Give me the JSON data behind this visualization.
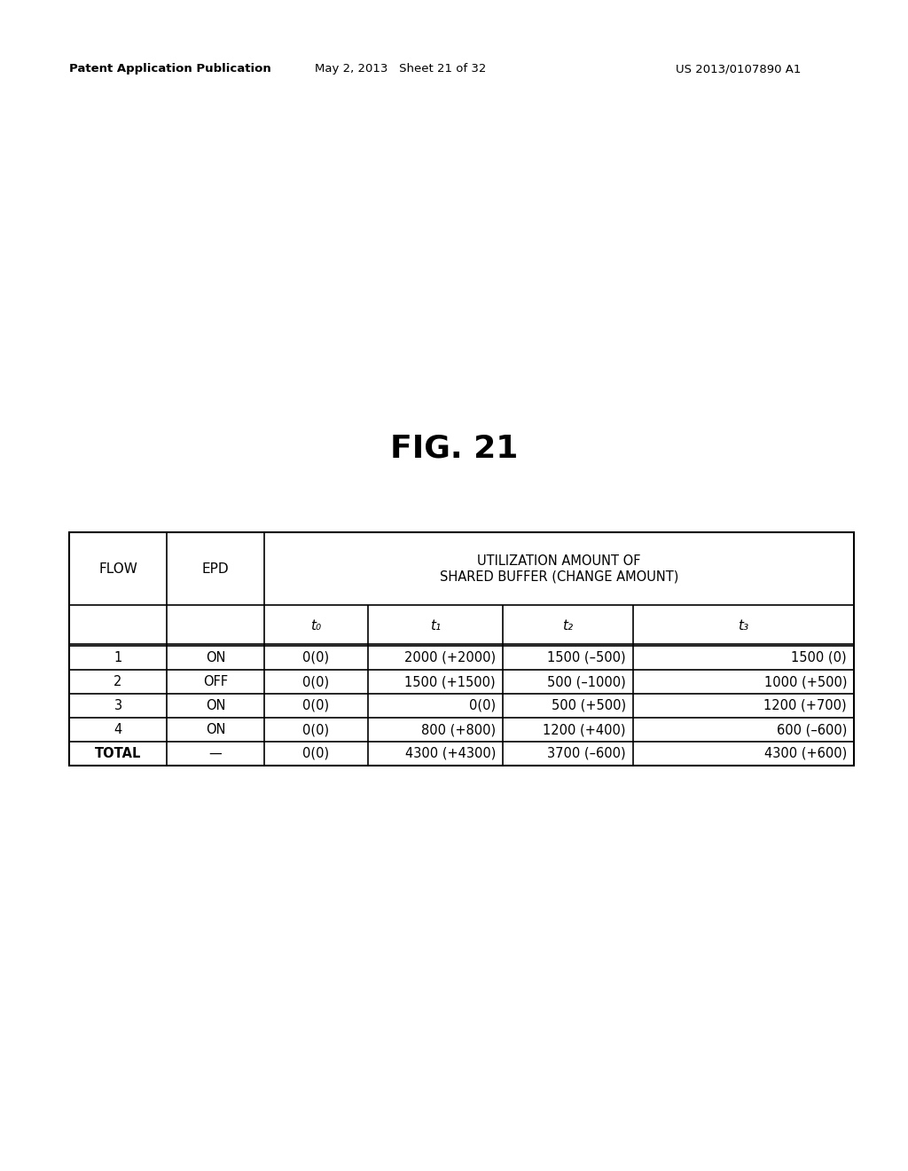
{
  "header_line1": "Patent Application Publication",
  "header_date": "May 2, 2013   Sheet 21 of 32",
  "header_patent": "US 2013/0107890 A1",
  "fig_label": "FIG. 21",
  "table": {
    "merged_header": "UTILIZATION AMOUNT OF\nSHARED BUFFER (CHANGE AMOUNT)",
    "rows": [
      [
        "1",
        "ON",
        "0(0)",
        "2000 (+2000)",
        "1500 (–500)",
        "1500 (0)"
      ],
      [
        "2",
        "OFF",
        "0(0)",
        "1500 (+1500)",
        "500 (–1000)",
        "1000 (+500)"
      ],
      [
        "3",
        "ON",
        "0(0)",
        "0(0)",
        "500 (+500)",
        "1200 (+700)"
      ],
      [
        "4",
        "ON",
        "0(0)",
        "800 (+800)",
        "1200 (+400)",
        "600 (–600)"
      ],
      [
        "TOTAL",
        "—",
        "0(0)",
        "4300 (+4300)",
        "3700 (–600)",
        "4300 (+600)"
      ]
    ]
  },
  "bg_color": "#ffffff",
  "text_color": "#000000"
}
